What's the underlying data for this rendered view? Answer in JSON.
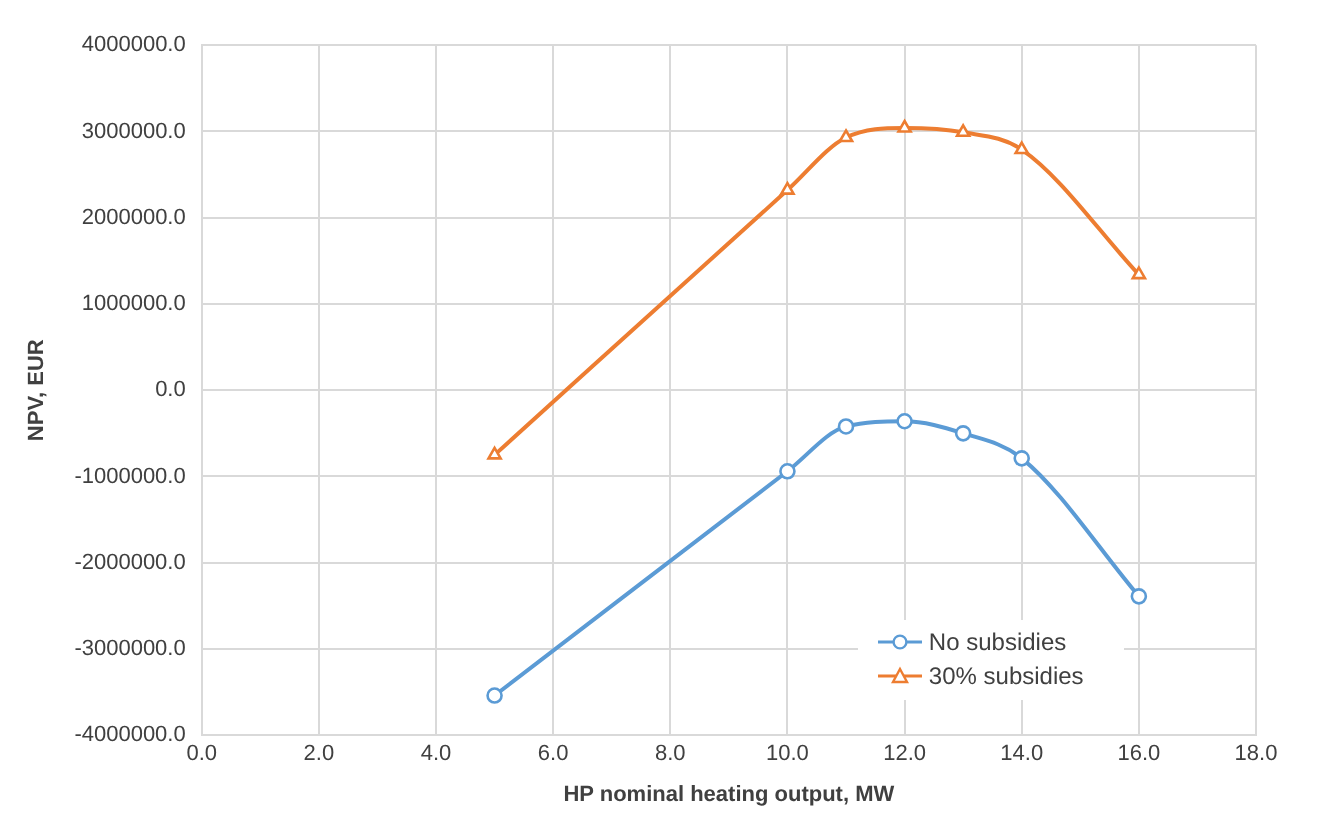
{
  "chart_data": {
    "type": "line",
    "xlabel": "HP nominal heating output, MW",
    "ylabel": "NPV, EUR",
    "x": [
      5,
      10,
      11,
      12,
      13,
      14,
      16
    ],
    "series": [
      {
        "name": "No subsidies",
        "color": "#5b9bd5",
        "marker": "circle",
        "values": [
          -3540000,
          -940000,
          -420000,
          -360000,
          -500000,
          -790000,
          -2390000
        ]
      },
      {
        "name": "30% subsidies",
        "color": "#ed7d31",
        "marker": "triangle",
        "values": [
          -750000,
          2320000,
          2930000,
          3040000,
          2990000,
          2790000,
          1340000
        ]
      }
    ],
    "xlim": [
      0,
      18
    ],
    "xticks": [
      {
        "value": 0,
        "label": "0.0"
      },
      {
        "value": 2,
        "label": "2.0"
      },
      {
        "value": 4,
        "label": "4.0"
      },
      {
        "value": 6,
        "label": "6.0"
      },
      {
        "value": 8,
        "label": "8.0"
      },
      {
        "value": 10,
        "label": "10.0"
      },
      {
        "value": 12,
        "label": "12.0"
      },
      {
        "value": 14,
        "label": "14.0"
      },
      {
        "value": 16,
        "label": "16.0"
      },
      {
        "value": 18,
        "label": "18.0"
      }
    ],
    "ylim": [
      -4000000,
      4000000
    ],
    "yticks": [
      {
        "value": -4000000,
        "label": "-4000000.0"
      },
      {
        "value": -3000000,
        "label": "-3000000.0"
      },
      {
        "value": -2000000,
        "label": "-2000000.0"
      },
      {
        "value": -1000000,
        "label": "-1000000.0"
      },
      {
        "value": 0,
        "label": "0.0"
      },
      {
        "value": 1000000,
        "label": "1000000.0"
      },
      {
        "value": 2000000,
        "label": "2000000.0"
      },
      {
        "value": 3000000,
        "label": "3000000.0"
      },
      {
        "value": 4000000,
        "label": "4000000.0"
      }
    ],
    "grid": true,
    "legend": "bottom"
  }
}
